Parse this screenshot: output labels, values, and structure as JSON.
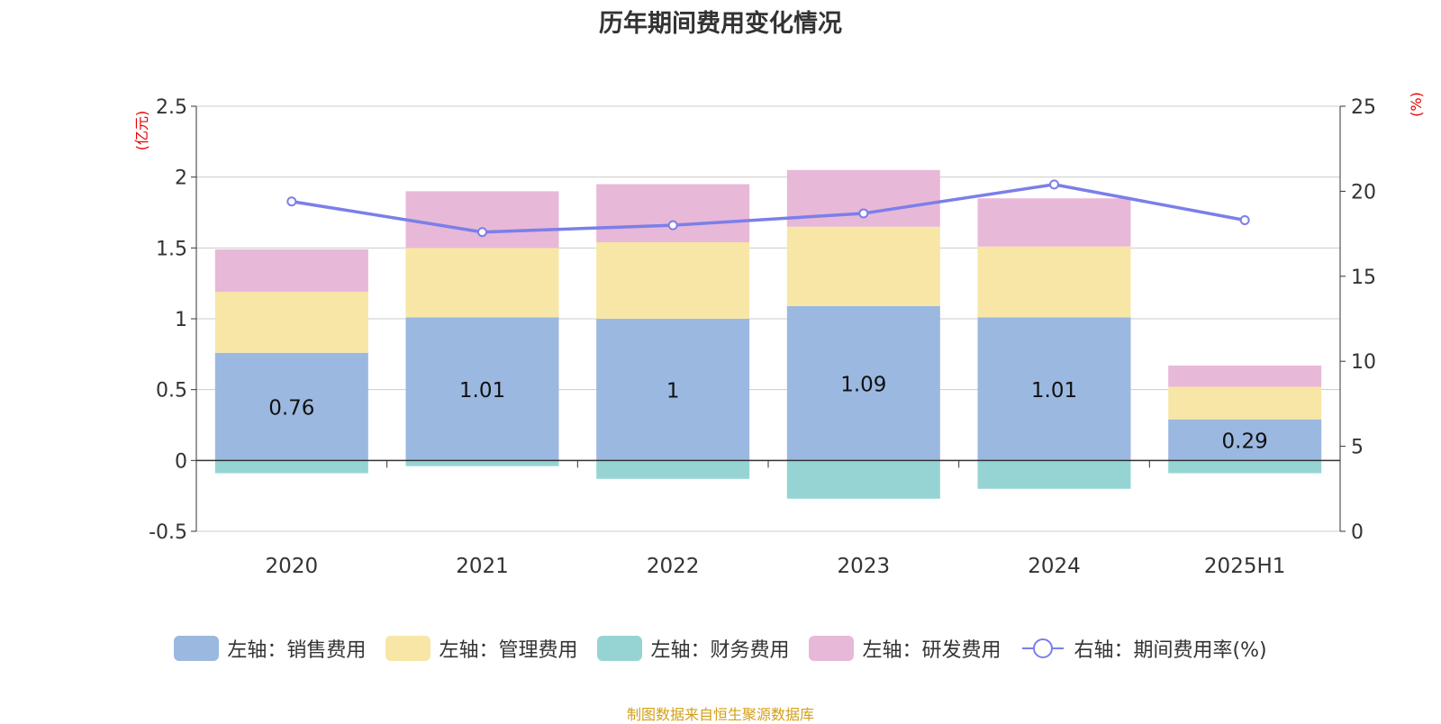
{
  "page": {
    "title": "历年期间费用变化情况",
    "source_note": "制图数据来自恒生聚源数据库",
    "source_color": "#d4a017"
  },
  "chart_data": {
    "type": "bar",
    "title": "历年期间费用变化情况",
    "categories": [
      "2020",
      "2021",
      "2022",
      "2023",
      "2024",
      "2025H1"
    ],
    "y_left": {
      "unit": "(亿元)",
      "range": [
        -0.5,
        2.5
      ],
      "ticks": [
        "-0.5",
        "0",
        "0.5",
        "1",
        "1.5",
        "2",
        "2.5"
      ]
    },
    "y_right": {
      "unit": "(%)",
      "range": [
        0,
        25
      ],
      "ticks": [
        "0",
        "5",
        "10",
        "15",
        "20",
        "25"
      ]
    },
    "grid": true,
    "legend_position": "bottom",
    "series": [
      {
        "name": "左轴：销售费用",
        "type": "bar",
        "axis": "left",
        "color": "#9bb8e0",
        "values": [
          0.76,
          1.01,
          1.0,
          1.09,
          1.01,
          0.29
        ],
        "data_labels": [
          "0.76",
          "1.01",
          "1",
          "1.09",
          "1.01",
          "0.29"
        ]
      },
      {
        "name": "左轴：管理费用",
        "type": "bar",
        "axis": "left",
        "color": "#f7e6a6",
        "values": [
          0.43,
          0.49,
          0.54,
          0.56,
          0.5,
          0.23
        ]
      },
      {
        "name": "左轴：财务费用",
        "type": "bar",
        "axis": "left",
        "color": "#96d4d4",
        "values": [
          -0.09,
          -0.04,
          -0.13,
          -0.27,
          -0.2,
          -0.09
        ]
      },
      {
        "name": "左轴：研发费用",
        "type": "bar",
        "axis": "left",
        "color": "#e8b8d8",
        "values": [
          0.3,
          0.4,
          0.41,
          0.4,
          0.34,
          0.15
        ]
      },
      {
        "name": "右轴：期间费用率(%)",
        "type": "line",
        "axis": "right",
        "color": "#7b7fe8",
        "values": [
          19.4,
          17.6,
          18.0,
          18.7,
          20.4,
          18.3
        ]
      }
    ]
  }
}
